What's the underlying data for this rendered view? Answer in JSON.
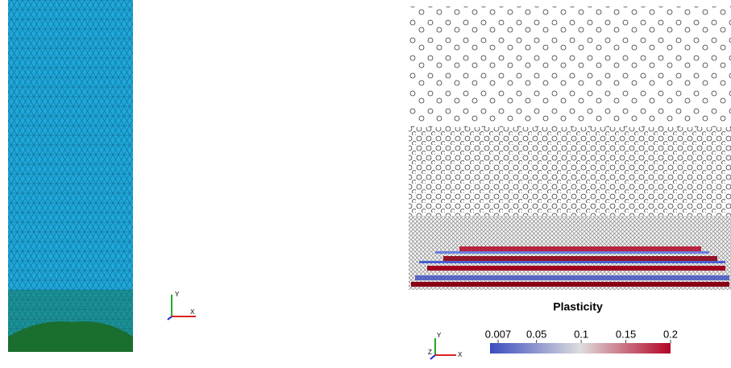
{
  "left_view": {
    "axes": {
      "y": "Y",
      "x": "X"
    }
  },
  "right_view": {
    "colorbar": {
      "title": "Plasticity",
      "range": [
        0.007,
        0.2
      ],
      "ticks": [
        0.007,
        0.05,
        0.1,
        0.15,
        0.2
      ]
    },
    "axes": {
      "y": "Y",
      "z": "Z",
      "x": "X"
    }
  }
}
